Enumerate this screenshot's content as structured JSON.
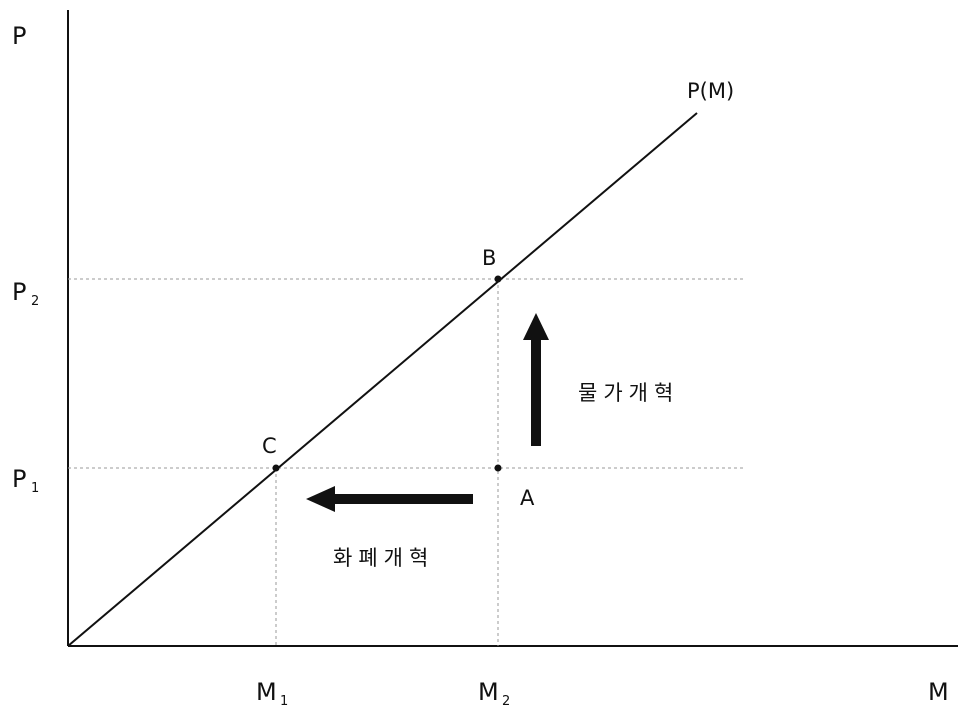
{
  "axes": {
    "y_label": "P",
    "x_label": "M",
    "y_ticks": [
      {
        "main": "P",
        "sub": "1"
      },
      {
        "main": "P",
        "sub": "2"
      }
    ],
    "x_ticks": [
      {
        "main": "M",
        "sub": "1"
      },
      {
        "main": "M",
        "sub": "2"
      }
    ]
  },
  "curve": {
    "label": "P(M)"
  },
  "points": {
    "A": "A",
    "B": "B",
    "C": "C"
  },
  "arrows": {
    "price_reform": "물가개혁",
    "currency_reform": "화폐개혁"
  },
  "colors": {
    "line": "#111111",
    "guide": "#9a9a9a",
    "background": "#ffffff"
  }
}
